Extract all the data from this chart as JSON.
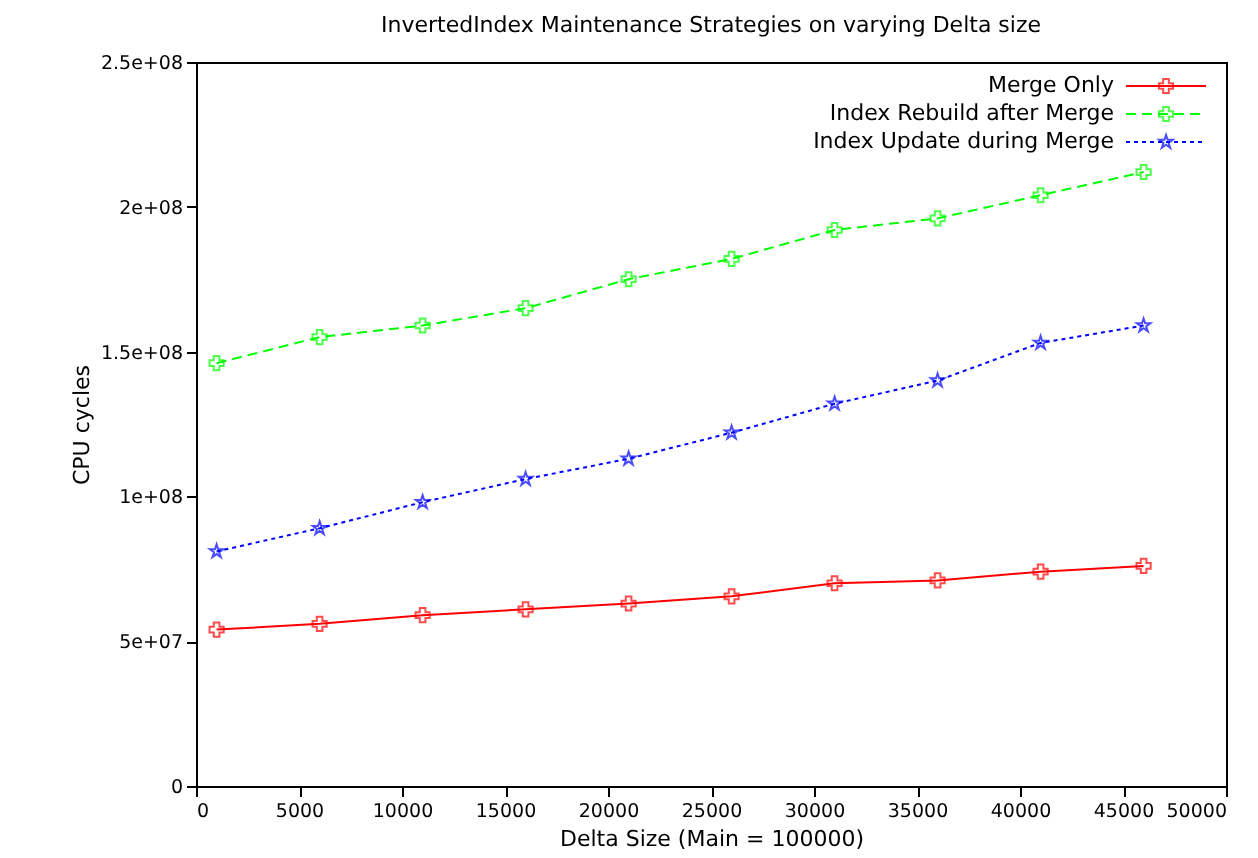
{
  "chart_data": {
    "type": "line",
    "title": "InvertedIndex Maintenance Strategies on varying Delta size",
    "xlabel": "Delta Size (Main = 100000)",
    "ylabel": "CPU cycles",
    "x": [
      1000,
      6000,
      11000,
      16000,
      21000,
      26000,
      31000,
      36000,
      41000,
      46000
    ],
    "series": [
      {
        "name": "Merge Only",
        "color": "#ff0000",
        "line_style": "solid",
        "marker": "cross",
        "values": [
          54000000,
          56000000,
          59000000,
          61000000,
          63000000,
          65500000,
          70000000,
          71000000,
          74000000,
          76000000
        ]
      },
      {
        "name": "Index Rebuild after Merge",
        "color": "#00ff00",
        "line_style": "dashed",
        "marker": "cross",
        "values": [
          146000000,
          155000000,
          159000000,
          165000000,
          175000000,
          182000000,
          192000000,
          196000000,
          204000000,
          212000000
        ]
      },
      {
        "name": "Index Update during Merge",
        "color": "#0000ff",
        "line_style": "dotted",
        "marker": "star",
        "values": [
          81000000,
          89000000,
          98000000,
          106000000,
          113000000,
          122000000,
          132000000,
          140000000,
          153000000,
          159000000
        ]
      }
    ],
    "xlim": [
      0,
      50000
    ],
    "xticks": [
      0,
      5000,
      10000,
      15000,
      20000,
      25000,
      30000,
      35000,
      40000,
      45000,
      50000
    ],
    "ylim": [
      0,
      250000000
    ],
    "yticks": [
      0,
      {
        "value": 50000000,
        "label": "5e+07"
      },
      {
        "value": 100000000,
        "label": "1e+08"
      },
      {
        "value": 150000000,
        "label": "1.5e+08"
      },
      {
        "value": 200000000,
        "label": "2e+08"
      },
      {
        "value": 250000000,
        "label": "2.5e+08"
      }
    ],
    "grid": false,
    "legend": "top right"
  }
}
